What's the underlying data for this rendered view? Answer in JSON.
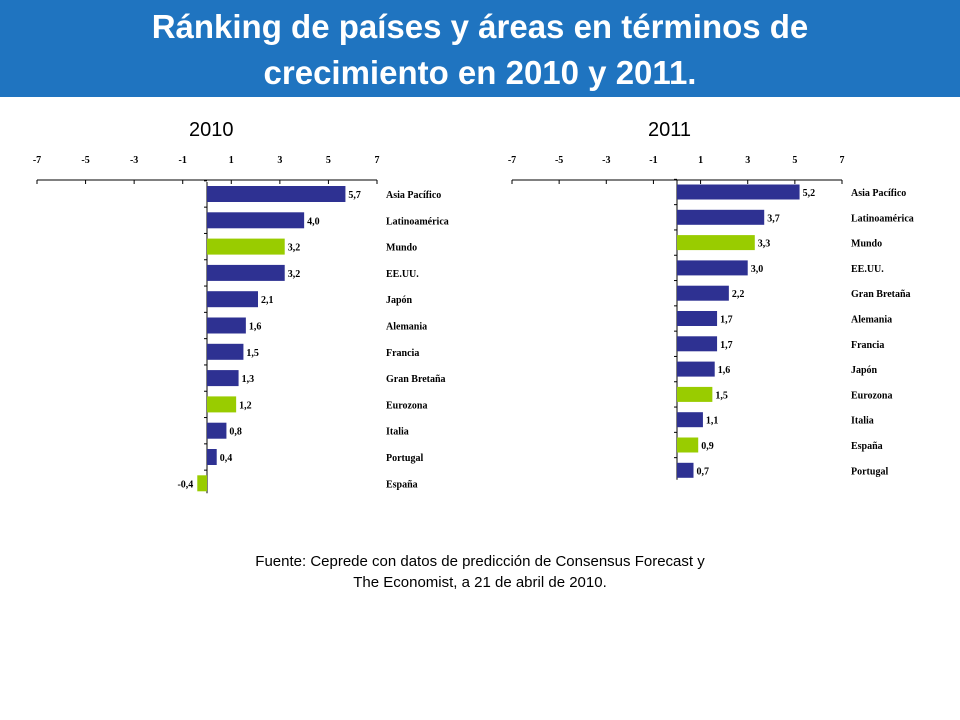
{
  "header": {
    "title": "Ránking de países y áreas en términos de crecimiento en 2010 y 2011."
  },
  "colors": {
    "header_bg": "#1f74c0",
    "bar_blue": "#2e3192",
    "bar_green": "#99cc00"
  },
  "chart_data": [
    {
      "type": "bar",
      "orientation": "horizontal",
      "title": "2010",
      "xlim": [
        -7,
        7
      ],
      "ticks": [
        "-7",
        "-5",
        "-3",
        "-1",
        "1",
        "3",
        "5",
        "7"
      ],
      "categories": [
        "Asia Pacífico",
        "Latinoamérica",
        "Mundo",
        "EE.UU.",
        "Japón",
        "Alemania",
        "Francia",
        "Gran Bretaña",
        "Eurozona",
        "Italia",
        "Portugal",
        "España"
      ],
      "values": [
        5.7,
        4.0,
        3.2,
        3.2,
        2.1,
        1.6,
        1.5,
        1.3,
        1.2,
        0.8,
        0.4,
        -0.4
      ],
      "value_labels": [
        "5,7",
        "4,0",
        "3,2",
        "3,2",
        "2,1",
        "1,6",
        "1,5",
        "1,3",
        "1,2",
        "0,8",
        "0,4",
        "-0,4"
      ],
      "highlight": [
        false,
        false,
        true,
        false,
        false,
        false,
        false,
        false,
        true,
        false,
        false,
        true
      ]
    },
    {
      "type": "bar",
      "orientation": "horizontal",
      "title": "2011",
      "xlim": [
        -7,
        7
      ],
      "ticks": [
        "-7",
        "-5",
        "-3",
        "-1",
        "1",
        "3",
        "5",
        "7"
      ],
      "categories": [
        "Asia Pacífico",
        "Latinoamérica",
        "Mundo",
        "EE.UU.",
        "Gran Bretaña",
        "Alemania",
        "Francia",
        "Japón",
        "Eurozona",
        "Italia",
        "España",
        "Portugal"
      ],
      "values": [
        5.2,
        3.7,
        3.3,
        3.0,
        2.2,
        1.7,
        1.7,
        1.6,
        1.5,
        1.1,
        0.9,
        0.7
      ],
      "value_labels": [
        "5,2",
        "3,7",
        "3,3",
        "3,0",
        "2,2",
        "1,7",
        "1,7",
        "1,6",
        "1,5",
        "1,1",
        "0,9",
        "0,7"
      ],
      "highlight": [
        false,
        false,
        true,
        false,
        false,
        false,
        false,
        false,
        true,
        false,
        true,
        false
      ]
    }
  ],
  "source": {
    "line1": "Fuente: Ceprede con datos de predicción de Consensus Forecast y",
    "line2": "The Economist, a 21 de abril de 2010."
  }
}
